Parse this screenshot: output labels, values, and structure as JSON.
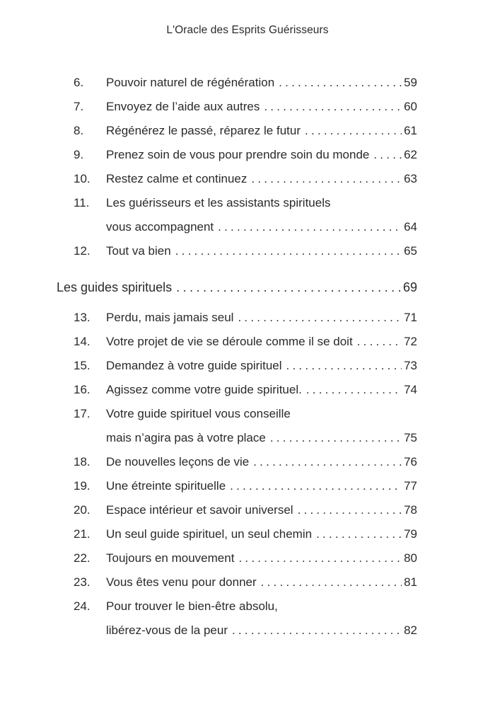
{
  "header": {
    "title": "L'Oracle des Esprits Guérisseurs"
  },
  "toc": [
    {
      "number": "6.",
      "lines": [
        "Pouvoir naturel de régénération"
      ],
      "page": "59"
    },
    {
      "number": "7.",
      "lines": [
        "Envoyez de l’aide aux autres"
      ],
      "page": "60"
    },
    {
      "number": "8.",
      "lines": [
        "Régénérez le passé, réparez le futur"
      ],
      "page": "61"
    },
    {
      "number": "9.",
      "lines": [
        "Prenez soin de vous pour prendre soin du monde"
      ],
      "page": "62"
    },
    {
      "number": "10.",
      "lines": [
        "Restez calme et continuez"
      ],
      "page": "63"
    },
    {
      "number": "11.",
      "lines": [
        "Les guérisseurs et les assistants spirituels",
        "vous accompagnent"
      ],
      "page": "64"
    },
    {
      "number": "12.",
      "lines": [
        "Tout va bien"
      ],
      "page": "65"
    },
    {
      "section": true,
      "lines": [
        "Les guides spirituels"
      ],
      "page": "69"
    },
    {
      "number": "13.",
      "lines": [
        "Perdu, mais jamais seul"
      ],
      "page": "71"
    },
    {
      "number": "14.",
      "lines": [
        "Votre projet de vie se déroule comme il se doit"
      ],
      "page": "72"
    },
    {
      "number": "15.",
      "lines": [
        "Demandez à votre guide spirituel"
      ],
      "page": "73"
    },
    {
      "number": "16.",
      "lines": [
        "Agissez comme votre guide spirituel."
      ],
      "page": "74"
    },
    {
      "number": "17.",
      "lines": [
        "Votre guide spirituel vous conseille",
        "mais n’agira pas à votre place"
      ],
      "page": "75"
    },
    {
      "number": "18.",
      "lines": [
        "De nouvelles leçons de vie"
      ],
      "page": "76"
    },
    {
      "number": "19.",
      "lines": [
        "Une étreinte spirituelle"
      ],
      "page": "77"
    },
    {
      "number": "20.",
      "lines": [
        "Espace intérieur et savoir universel"
      ],
      "page": "78"
    },
    {
      "number": "21.",
      "lines": [
        "Un seul guide spirituel, un seul chemin"
      ],
      "page": "79"
    },
    {
      "number": "22.",
      "lines": [
        "Toujours en mouvement"
      ],
      "page": "80"
    },
    {
      "number": "23.",
      "lines": [
        "Vous êtes venu pour donner"
      ],
      "page": "81"
    },
    {
      "number": "24.",
      "lines": [
        "Pour trouver le bien-être absolu,",
        "libérez-vous de la peur"
      ],
      "page": "82"
    }
  ]
}
